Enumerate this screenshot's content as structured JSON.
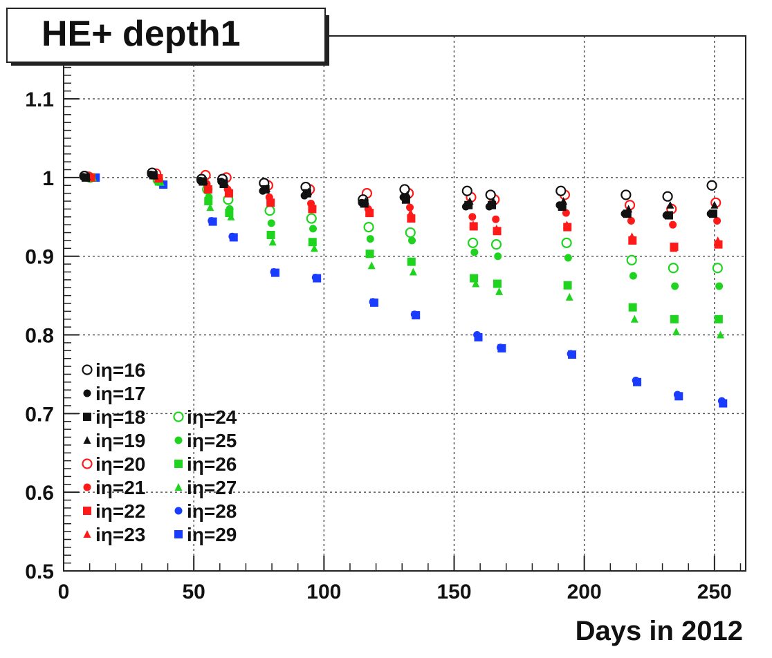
{
  "chart_data": {
    "type": "scatter",
    "title": "HE+ depth1",
    "xlabel": "Days in 2012",
    "ylabel": "",
    "xlim": [
      0,
      262
    ],
    "ylim": [
      0.5,
      1.18
    ],
    "xticks": [
      "0",
      "50",
      "100",
      "150",
      "200",
      "250"
    ],
    "xtick_values": [
      0,
      50,
      100,
      150,
      200,
      250
    ],
    "yticks": [
      "0.5",
      "0.6",
      "0.7",
      "0.8",
      "0.9",
      "1",
      "1.1"
    ],
    "ytick_values": [
      0.5,
      0.6,
      0.7,
      0.8,
      0.9,
      1.0,
      1.1
    ],
    "grid": true,
    "legend_position": "bottom-left",
    "x": [
      10,
      36,
      55,
      63,
      79,
      95,
      117,
      133,
      157,
      166,
      193,
      218,
      234,
      251
    ],
    "series": [
      {
        "name": "iη=16",
        "marker": "open-circle",
        "color": "#111111",
        "values": [
          1.002,
          1.006,
          0.998,
          0.998,
          0.993,
          0.988,
          0.972,
          0.985,
          0.983,
          0.978,
          0.983,
          0.978,
          0.976,
          0.99
        ]
      },
      {
        "name": "iη=17",
        "marker": "filled-circle",
        "color": "#111111",
        "values": [
          1.001,
          1.004,
          0.996,
          0.995,
          0.983,
          0.977,
          0.968,
          0.975,
          0.963,
          0.963,
          0.965,
          0.954,
          0.952,
          0.954
        ]
      },
      {
        "name": "iη=18",
        "marker": "filled-square",
        "color": "#111111",
        "values": [
          1.0,
          1.003,
          0.995,
          0.992,
          0.985,
          0.98,
          0.967,
          0.972,
          0.965,
          0.965,
          0.963,
          0.954,
          0.952,
          0.954
        ]
      },
      {
        "name": "iη=19",
        "marker": "filled-triangle",
        "color": "#111111",
        "values": [
          1.001,
          1.002,
          0.996,
          0.994,
          0.986,
          0.982,
          0.97,
          0.978,
          0.97,
          0.97,
          0.97,
          0.96,
          0.965,
          0.965
        ]
      },
      {
        "name": "iη=20",
        "marker": "open-circle",
        "color": "#ff1a1a",
        "values": [
          1.001,
          1.005,
          1.003,
          1.0,
          0.99,
          0.985,
          0.98,
          0.98,
          0.975,
          0.972,
          0.978,
          0.965,
          0.96,
          0.968
        ]
      },
      {
        "name": "iη=21",
        "marker": "filled-circle",
        "color": "#ff1a1a",
        "values": [
          1.0,
          1.0,
          0.992,
          0.985,
          0.975,
          0.967,
          0.96,
          0.962,
          0.95,
          0.947,
          0.955,
          0.945,
          0.94,
          0.945
        ]
      },
      {
        "name": "iη=22",
        "marker": "filled-square",
        "color": "#ff1a1a",
        "values": [
          1.0,
          0.999,
          0.985,
          0.98,
          0.968,
          0.96,
          0.955,
          0.948,
          0.938,
          0.932,
          0.937,
          0.92,
          0.912,
          0.915
        ]
      },
      {
        "name": "iη=23",
        "marker": "filled-triangle",
        "color": "#ff1a1a",
        "values": [
          1.0,
          0.998,
          0.988,
          0.983,
          0.972,
          0.963,
          0.957,
          0.955,
          0.94,
          0.935,
          0.94,
          0.925,
          0.91,
          0.92
        ]
      },
      {
        "name": "iη=24",
        "marker": "open-circle",
        "color": "#1fd41f",
        "values": [
          1.0,
          0.997,
          0.985,
          0.972,
          0.958,
          0.948,
          0.937,
          0.93,
          0.917,
          0.915,
          0.917,
          0.895,
          0.885,
          0.885
        ]
      },
      {
        "name": "iη=25",
        "marker": "filled-circle",
        "color": "#1fd41f",
        "values": [
          1.0,
          0.996,
          0.975,
          0.96,
          0.942,
          0.935,
          0.922,
          0.92,
          0.905,
          0.9,
          0.898,
          0.875,
          0.862,
          0.862
        ]
      },
      {
        "name": "iη=26",
        "marker": "filled-square",
        "color": "#1fd41f",
        "values": [
          1.0,
          0.995,
          0.97,
          0.955,
          0.927,
          0.918,
          0.903,
          0.893,
          0.872,
          0.865,
          0.863,
          0.835,
          0.82,
          0.82
        ]
      },
      {
        "name": "iη=27",
        "marker": "filled-triangle",
        "color": "#1fd41f",
        "values": [
          1.0,
          0.994,
          0.962,
          0.95,
          0.918,
          0.91,
          0.888,
          0.88,
          0.865,
          0.855,
          0.848,
          0.82,
          0.804,
          0.8
        ]
      },
      {
        "name": "iη=28",
        "marker": "filled-circle",
        "color": "#1a3cff",
        "values": [
          1.0,
          0.992,
          0.945,
          0.925,
          0.88,
          0.873,
          0.842,
          0.826,
          0.8,
          0.784,
          0.776,
          0.742,
          0.724,
          0.716
        ]
      },
      {
        "name": "iη=29",
        "marker": "filled-square",
        "color": "#1a3cff",
        "values": [
          1.0,
          0.991,
          0.944,
          0.924,
          0.879,
          0.872,
          0.841,
          0.825,
          0.797,
          0.783,
          0.775,
          0.74,
          0.722,
          0.713
        ]
      }
    ]
  }
}
